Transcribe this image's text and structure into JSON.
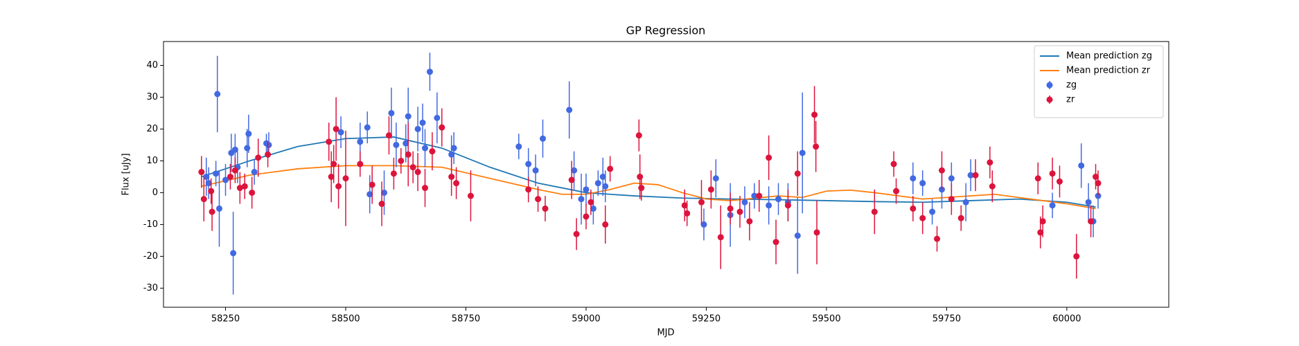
{
  "chart_data": {
    "type": "line",
    "title": "GP Regression",
    "x_label": "MJD",
    "y_label": "Flux [uJy]",
    "xlim": [
      58121,
      60212
    ],
    "ylim": [
      -36,
      47.5
    ],
    "xticks": [
      58250,
      58500,
      58750,
      59000,
      59250,
      59500,
      59750,
      60000
    ],
    "yticks": [
      -30,
      -20,
      -10,
      0,
      10,
      20,
      30,
      40
    ],
    "grid": false,
    "legend": "upper right",
    "series": [
      {
        "name": "Mean prediction zg",
        "type": "line",
        "color": "#1f77b4",
        "x": [
          58200,
          58300,
          58400,
          58500,
          58600,
          58700,
          58800,
          58900,
          59000,
          59100,
          59200,
          59300,
          59400,
          59500,
          59600,
          59700,
          59800,
          59900,
          60000,
          60060
        ],
        "values": [
          5,
          10,
          14.5,
          17,
          17.5,
          14,
          8,
          3,
          0,
          -1,
          -1.7,
          -2,
          -2.2,
          -2.5,
          -2.8,
          -3,
          -2.5,
          -2,
          -3,
          -4.5
        ]
      },
      {
        "name": "Mean prediction zr",
        "type": "line",
        "color": "#ff7f0e",
        "x": [
          58200,
          58300,
          58400,
          58500,
          58600,
          58700,
          58800,
          58900,
          58950,
          59000,
          59050,
          59100,
          59150,
          59200,
          59250,
          59300,
          59400,
          59450,
          59500,
          59550,
          59600,
          59700,
          59800,
          59850,
          59900,
          59950,
          60000,
          60060
        ],
        "values": [
          2,
          5.5,
          7.5,
          8.5,
          8.5,
          8,
          4.5,
          1,
          -0.5,
          -0.5,
          1,
          3,
          2.5,
          0,
          -2,
          -2.5,
          -1,
          -1.5,
          0.5,
          0.8,
          0,
          -2,
          -1,
          -0.5,
          -1.5,
          -2.5,
          -3.5,
          -5
        ]
      },
      {
        "name": "zg",
        "type": "errorbar",
        "color": "#4169e1",
        "x": [
          58210,
          58215,
          58230,
          58233,
          58237,
          58250,
          58262,
          58266,
          58270,
          58275,
          58295,
          58298,
          58310,
          58335,
          58340,
          58490,
          58530,
          58545,
          58550,
          58580,
          58595,
          58605,
          58625,
          58630,
          58650,
          58660,
          58665,
          58675,
          58690,
          58720,
          58725,
          58860,
          58880,
          58895,
          58910,
          58965,
          58975,
          58990,
          59000,
          59015,
          59025,
          59035,
          59040,
          59245,
          59270,
          59300,
          59330,
          59350,
          59380,
          59400,
          59420,
          59440,
          59450,
          59680,
          59700,
          59720,
          59740,
          59760,
          59790,
          59800,
          59970,
          60030,
          60045,
          60055,
          60065
        ],
        "values": [
          5,
          3,
          6,
          31,
          -5,
          4,
          12.5,
          -19,
          13.5,
          8,
          14,
          18.5,
          6.5,
          15.5,
          15,
          19,
          16,
          20.5,
          -0.5,
          0,
          25,
          15,
          15.5,
          24,
          20,
          22,
          14,
          38,
          23.5,
          12,
          14,
          14.5,
          9,
          7,
          17,
          26,
          7,
          -2,
          1,
          -5,
          3,
          5,
          2,
          -10,
          4.5,
          -7,
          -3,
          -1,
          -4,
          -2,
          -3,
          -13.5,
          12.5,
          4.5,
          3,
          -6,
          1,
          4.5,
          -3,
          5.5,
          -4,
          8.5,
          -3,
          -9,
          -1
        ],
        "errors": [
          6,
          5,
          4,
          12,
          12,
          5,
          6,
          13,
          5,
          5,
          6,
          6,
          4,
          3,
          4,
          5,
          6,
          5,
          6,
          7,
          8,
          7,
          6,
          9,
          7,
          6,
          6,
          6,
          8,
          6,
          5,
          4,
          5,
          5,
          6,
          9,
          6,
          8,
          5,
          5,
          4,
          6,
          5,
          5,
          6,
          10,
          5,
          4,
          6,
          5,
          6,
          12,
          19,
          5,
          4,
          4,
          6,
          5,
          6,
          5,
          4,
          7,
          6,
          5,
          4
        ]
      },
      {
        "name": "zr",
        "type": "errorbar",
        "color": "#dc143c",
        "x": [
          58200,
          58205,
          58220,
          58222,
          58260,
          58270,
          58280,
          58290,
          58305,
          58318,
          58338,
          58465,
          58470,
          58475,
          58480,
          58485,
          58500,
          58530,
          58555,
          58575,
          58590,
          58600,
          58615,
          58630,
          58640,
          58650,
          58665,
          58680,
          58700,
          58720,
          58730,
          58760,
          58880,
          58900,
          58915,
          58970,
          58980,
          59000,
          59010,
          59040,
          59050,
          59110,
          59112,
          59115,
          59205,
          59210,
          59240,
          59260,
          59280,
          59300,
          59320,
          59340,
          59360,
          59380,
          59395,
          59420,
          59440,
          59475,
          59478,
          59480,
          59600,
          59640,
          59645,
          59680,
          59700,
          59730,
          59740,
          59760,
          59780,
          59810,
          59840,
          59845,
          59940,
          59945,
          59950,
          59970,
          59985,
          60020,
          60050,
          60060,
          60065
        ],
        "values": [
          6.5,
          -2,
          0.5,
          -6,
          5,
          7,
          1.5,
          2,
          0,
          11,
          12,
          16,
          5,
          9,
          20,
          2,
          4.5,
          9,
          2.5,
          -3.5,
          18,
          6,
          10,
          12,
          8,
          6.5,
          1.5,
          13,
          20.5,
          5,
          3,
          -1,
          1,
          -2,
          -5,
          4,
          -13,
          -7.5,
          -3,
          -10,
          7.5,
          18,
          5,
          1.5,
          -4,
          -6.5,
          -3,
          1,
          -14,
          -5,
          -6,
          -9,
          -1,
          11,
          -15.5,
          -4,
          6,
          24.5,
          14.5,
          -12.5,
          -6,
          9,
          0.5,
          -5,
          -8,
          -14.5,
          7,
          -2,
          -8,
          5.5,
          9.5,
          2,
          4.5,
          -12.5,
          -9,
          6,
          3.5,
          -20,
          -9,
          5,
          3
        ],
        "errors": [
          5,
          7,
          4,
          6,
          4,
          4,
          5,
          4,
          5,
          6,
          4,
          6,
          8,
          6,
          10,
          7,
          15,
          4,
          6,
          7,
          6,
          5,
          4,
          10,
          5,
          6,
          6,
          6,
          6,
          6,
          5,
          8,
          4,
          4,
          4,
          6,
          5,
          4,
          4,
          6,
          4,
          5,
          7,
          4,
          5,
          4,
          7,
          6,
          10,
          5,
          5,
          6,
          5,
          7,
          7,
          5,
          7,
          9,
          8,
          10,
          7,
          4,
          4,
          4,
          5,
          4,
          6,
          5,
          4,
          5,
          5,
          5,
          5,
          5,
          5,
          5,
          5,
          7,
          5,
          4,
          4
        ]
      }
    ]
  }
}
